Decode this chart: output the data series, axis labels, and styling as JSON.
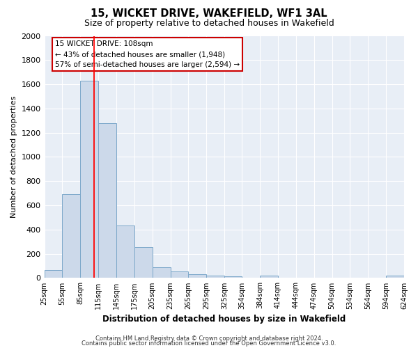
{
  "title": "15, WICKET DRIVE, WAKEFIELD, WF1 3AL",
  "subtitle": "Size of property relative to detached houses in Wakefield",
  "xlabel": "Distribution of detached houses by size in Wakefield",
  "ylabel": "Number of detached properties",
  "bar_color": "#ccd9ea",
  "bar_edge_color": "#7ba7c9",
  "fig_bg_color": "#ffffff",
  "axes_bg_color": "#e8eef6",
  "grid_color": "#ffffff",
  "red_line_x": 108,
  "bins": [
    25,
    55,
    85,
    115,
    145,
    175,
    205,
    235,
    265,
    295,
    325,
    354,
    384,
    414,
    444,
    474,
    504,
    534,
    564,
    594,
    624
  ],
  "bin_labels": [
    "25sqm",
    "55sqm",
    "85sqm",
    "115sqm",
    "145sqm",
    "175sqm",
    "205sqm",
    "235sqm",
    "265sqm",
    "295sqm",
    "325sqm",
    "354sqm",
    "384sqm",
    "414sqm",
    "444sqm",
    "474sqm",
    "504sqm",
    "534sqm",
    "564sqm",
    "594sqm",
    "624sqm"
  ],
  "counts": [
    65,
    695,
    1630,
    1280,
    435,
    255,
    88,
    52,
    30,
    20,
    15,
    0,
    20,
    0,
    0,
    0,
    0,
    0,
    0,
    20
  ],
  "ylim": [
    0,
    2000
  ],
  "yticks": [
    0,
    200,
    400,
    600,
    800,
    1000,
    1200,
    1400,
    1600,
    1800,
    2000
  ],
  "ann_line1": "15 WICKET DRIVE: 108sqm",
  "ann_line2": "← 43% of detached houses are smaller (1,948)",
  "ann_line3": "57% of semi-detached houses are larger (2,594) →",
  "ann_box_edgecolor": "#cc0000",
  "footer1": "Contains HM Land Registry data © Crown copyright and database right 2024.",
  "footer2": "Contains public sector information licensed under the Open Government Licence v3.0."
}
